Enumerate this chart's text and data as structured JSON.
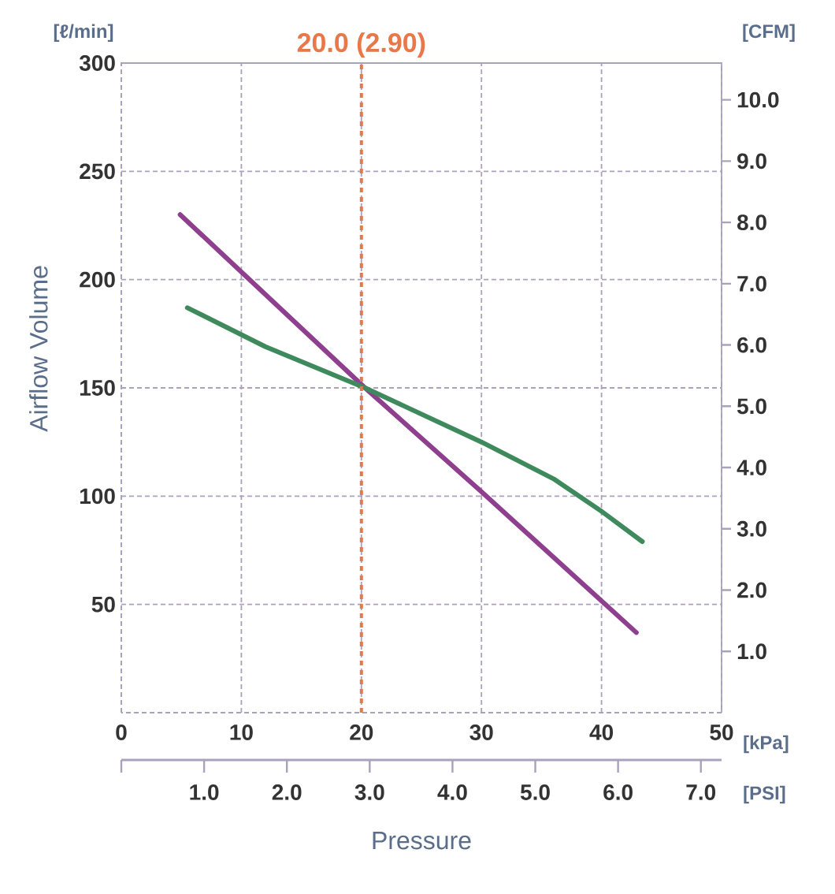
{
  "chart_data": {
    "type": "line",
    "xlabel": "Pressure",
    "ylabel": "Airflow Volume",
    "y2label": "[CFM]",
    "x2label": "[PSI]",
    "annotations": [
      "[ℓ/min]",
      "[kPa]"
    ],
    "series": [
      {
        "color": "#8e3f8e",
        "x": [
          4.9,
          20.3,
          30,
          42.9
        ],
        "values": [
          230,
          150,
          102,
          37
        ]
      },
      {
        "color": "#3f8a5c",
        "x": [
          5.5,
          12,
          20.3,
          30,
          36,
          40,
          43.4
        ],
        "values": [
          187,
          169,
          150,
          125,
          108,
          93,
          79
        ]
      }
    ],
    "xlim": [
      0,
      50
    ],
    "xticks": [
      0,
      10,
      20,
      30,
      40,
      50
    ],
    "ylim": [
      0,
      300
    ],
    "yticks": [
      50,
      100,
      150,
      200,
      250,
      300
    ],
    "y2lim": [
      0,
      10.6
    ],
    "y2ticks": [
      {
        "value": 1,
        "label": "1.0"
      },
      {
        "value": 2,
        "label": "2.0"
      },
      {
        "value": 3,
        "label": "3.0"
      },
      {
        "value": 4,
        "label": "4.0"
      },
      {
        "value": 5,
        "label": "5.0"
      },
      {
        "value": 6,
        "label": "6.0"
      },
      {
        "value": 7,
        "label": "7.0"
      },
      {
        "value": 8,
        "label": "8.0"
      },
      {
        "value": 9,
        "label": "9.0"
      },
      {
        "value": 10,
        "label": "10.0"
      }
    ],
    "x2lim": [
      0,
      7.25
    ],
    "x2ticks": [
      {
        "value": 0,
        "label": null
      },
      {
        "value": 1,
        "label": "1.0"
      },
      {
        "value": 2,
        "label": "2.0"
      },
      {
        "value": 3,
        "label": "3.0"
      },
      {
        "value": 4,
        "label": "4.0"
      },
      {
        "value": 5,
        "label": "5.0"
      },
      {
        "value": 6,
        "label": "6.0"
      },
      {
        "value": 7,
        "label": "7.0"
      }
    ],
    "ref_lines": [
      {
        "axis": "x",
        "value": 20,
        "label": "20.0 (2.90)",
        "color": "#e8784a",
        "line_style": "dashed"
      }
    ],
    "grid": true
  }
}
